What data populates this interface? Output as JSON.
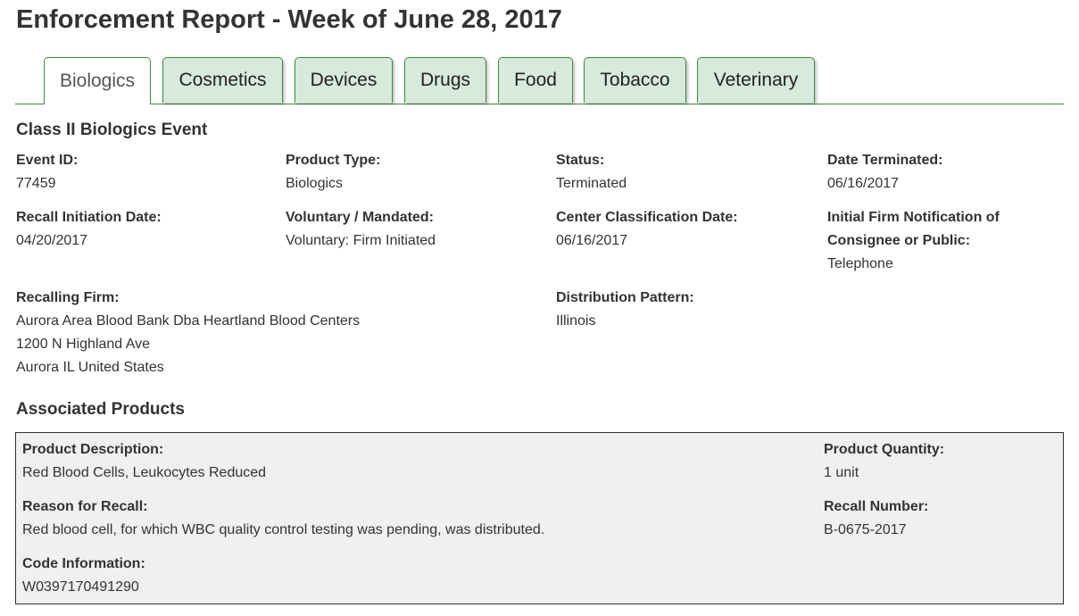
{
  "title": "Enforcement Report - Week of June 28, 2017",
  "tabs": [
    "Biologics",
    "Cosmetics",
    "Devices",
    "Drugs",
    "Food",
    "Tobacco",
    "Veterinary"
  ],
  "active_tab": "Biologics",
  "event_heading": "Class II Biologics Event",
  "fields": {
    "event_id": {
      "label": "Event ID:",
      "value": "77459"
    },
    "product_type": {
      "label": "Product Type:",
      "value": "Biologics"
    },
    "status": {
      "label": "Status:",
      "value": "Terminated"
    },
    "date_terminated": {
      "label": "Date Terminated:",
      "value": "06/16/2017"
    },
    "recall_initiation": {
      "label": "Recall Initiation Date:",
      "value": "04/20/2017"
    },
    "voluntary": {
      "label": "Voluntary / Mandated:",
      "value": "Voluntary: Firm Initiated"
    },
    "center_class": {
      "label": "Center Classification Date:",
      "value": "06/16/2017"
    },
    "initial_notif": {
      "label1": "Initial Firm Notification of",
      "label2": "Consignee or Public:",
      "value": "Telephone"
    },
    "recalling_firm": {
      "label": "Recalling Firm:",
      "line1": "Aurora Area Blood Bank Dba Heartland Blood Centers",
      "line2": "1200 N Highland Ave",
      "line3": "Aurora IL United States"
    },
    "distribution": {
      "label": "Distribution Pattern:",
      "value": "Illinois"
    }
  },
  "products_heading": "Associated Products",
  "product": {
    "description": {
      "label": "Product Description:",
      "value": "Red Blood Cells, Leukocytes Reduced"
    },
    "reason": {
      "label": "Reason for Recall:",
      "value": "Red blood cell, for which WBC quality control testing was pending, was distributed."
    },
    "code": {
      "label": "Code Information:",
      "value": "W0397170491290"
    },
    "quantity": {
      "label": "Product Quantity:",
      "value": "1 unit"
    },
    "recall_number": {
      "label": "Recall Number:",
      "value": "B-0675-2017"
    }
  }
}
